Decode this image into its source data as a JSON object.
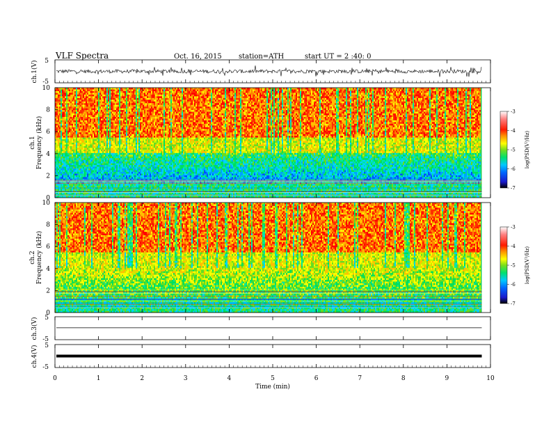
{
  "header": {
    "title": "VLF Spectra",
    "date": "Oct. 16, 2015",
    "station": "station=ATH",
    "start": "start UT =  2 :40: 0"
  },
  "colors": {
    "scale": [
      "#000000",
      "#1a1acc",
      "#0066ff",
      "#00c8ff",
      "#00e06e",
      "#7ade1a",
      "#ffff00",
      "#ff9000",
      "#ff1a00",
      "#ff8080",
      "#ffffff"
    ]
  },
  "chart_data": [
    {
      "type": "line",
      "id": "ch1-waveform",
      "ylabel": "ch.1(V)",
      "yticks": [
        "5",
        "-5"
      ],
      "ylim": [
        -5,
        5
      ],
      "description_values": "noisy waveform centred near 0 V, amplitude approx ±1 V with occasional spikes to ±2 V"
    },
    {
      "type": "heatmap",
      "id": "ch1-spectrogram",
      "ylabel": "ch.1\nFrequency (kHz)",
      "ylabel_lines": [
        "ch.1",
        "Frequency (kHz)"
      ],
      "yticks": [
        "0",
        "2",
        "4",
        "6",
        "8",
        "10"
      ],
      "ylim": [
        0,
        10
      ],
      "colorbar": {
        "label": "log(PSD(V²/Hz)",
        "ticks": [
          "-3",
          "-4",
          "-5",
          "-6",
          "-7"
        ],
        "range": [
          -7,
          -3
        ]
      }
    },
    {
      "type": "heatmap",
      "id": "ch2-spectrogram",
      "ylabel_lines": [
        "ch.2",
        "Frequency (kHz)"
      ],
      "yticks": [
        "0",
        "2",
        "4",
        "6",
        "8",
        "10"
      ],
      "ylim": [
        0,
        10
      ],
      "colorbar": {
        "label": "log(PSD(V²/Hz)",
        "ticks": [
          "-3",
          "-4",
          "-5",
          "-6",
          "-7"
        ],
        "range": [
          -7,
          -3
        ]
      }
    },
    {
      "type": "line",
      "id": "ch3-waveform",
      "ylabel": "ch.3(V)",
      "yticks": [
        "5",
        "-5"
      ],
      "ylim": [
        -5,
        5
      ],
      "values": {
        "level": 0.2
      }
    },
    {
      "type": "line",
      "id": "ch4-waveform",
      "ylabel": "ch.4(V)",
      "yticks": [
        "5",
        "-5"
      ],
      "ylim": [
        -5,
        5
      ],
      "values": {
        "level": 0.0
      }
    }
  ],
  "xaxis": {
    "label": "Time (min)",
    "ticks": [
      "0",
      "1",
      "2",
      "3",
      "4",
      "5",
      "6",
      "7",
      "8",
      "9",
      "10"
    ],
    "xlim": [
      0,
      10
    ],
    "data_end": 9.8
  }
}
